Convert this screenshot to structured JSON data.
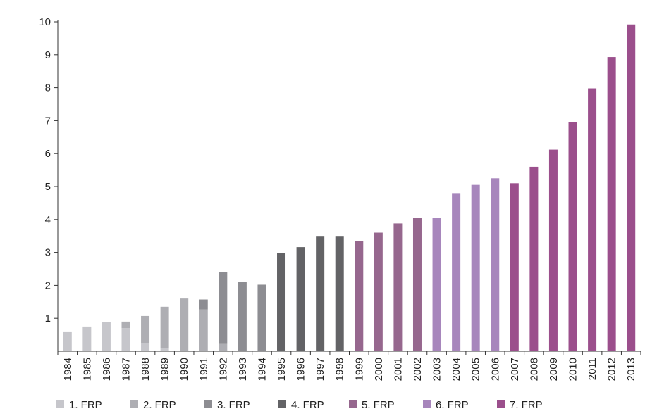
{
  "chart_data": {
    "type": "bar",
    "stacked": true,
    "title": "",
    "xlabel": "",
    "ylabel": "",
    "ylim": [
      0,
      10
    ],
    "yticks": [
      1,
      2,
      3,
      4,
      5,
      6,
      7,
      8,
      9,
      10
    ],
    "grid": false,
    "legend_position": "bottom",
    "categories": [
      "1984",
      "1985",
      "1986",
      "1987",
      "1988",
      "1989",
      "1990",
      "1991",
      "1992",
      "1993",
      "1994",
      "1995",
      "1996",
      "1997",
      "1998",
      "1999",
      "2000",
      "2001",
      "2002",
      "2003",
      "2004",
      "2005",
      "2006",
      "2007",
      "2008",
      "2009",
      "2010",
      "2011",
      "2012",
      "2013"
    ],
    "series": [
      {
        "name": "1. FRP",
        "color": "#c6c6cb",
        "values": [
          0.6,
          0.75,
          0.88,
          0.7,
          0.25,
          0.1,
          0,
          0,
          0,
          0,
          0,
          0,
          0,
          0,
          0,
          0,
          0,
          0,
          0,
          0,
          0,
          0,
          0,
          0,
          0,
          0,
          0,
          0,
          0,
          0
        ]
      },
      {
        "name": "2. FRP",
        "color": "#aeaeb3",
        "values": [
          0,
          0,
          0,
          0.2,
          0.82,
          1.25,
          1.6,
          1.27,
          0.22,
          0,
          0,
          0,
          0,
          0,
          0,
          0,
          0,
          0,
          0,
          0,
          0,
          0,
          0,
          0,
          0,
          0,
          0,
          0,
          0,
          0
        ]
      },
      {
        "name": "3. FRP",
        "color": "#8d8d92",
        "values": [
          0,
          0,
          0,
          0,
          0,
          0,
          0,
          0.3,
          2.18,
          2.1,
          2.02,
          0,
          0,
          0,
          0,
          0,
          0,
          0,
          0,
          0,
          0,
          0,
          0,
          0,
          0,
          0,
          0,
          0,
          0,
          0
        ]
      },
      {
        "name": "4. FRP",
        "color": "#636366",
        "values": [
          0,
          0,
          0,
          0,
          0,
          0,
          0,
          0,
          0,
          0,
          0,
          2.98,
          3.16,
          3.5,
          3.5,
          0,
          0,
          0,
          0,
          0,
          0,
          0,
          0,
          0,
          0,
          0,
          0,
          0,
          0,
          0
        ]
      },
      {
        "name": "5. FRP",
        "color": "#96678e",
        "values": [
          0,
          0,
          0,
          0,
          0,
          0,
          0,
          0,
          0,
          0,
          0,
          0,
          0,
          0,
          0,
          3.35,
          3.6,
          3.88,
          4.05,
          0,
          0,
          0,
          0,
          0,
          0,
          0,
          0,
          0,
          0,
          0
        ]
      },
      {
        "name": "6. FRP",
        "color": "#a786bc",
        "values": [
          0,
          0,
          0,
          0,
          0,
          0,
          0,
          0,
          0,
          0,
          0,
          0,
          0,
          0,
          0,
          0,
          0,
          0,
          0,
          4.05,
          4.8,
          5.05,
          5.25,
          0,
          0,
          0,
          0,
          0,
          0,
          0
        ]
      },
      {
        "name": "7. FRP",
        "color": "#9b4f8c",
        "values": [
          0,
          0,
          0,
          0,
          0,
          0,
          0,
          0,
          0,
          0,
          0,
          0,
          0,
          0,
          0,
          0,
          0,
          0,
          0,
          0,
          0,
          0,
          0,
          5.1,
          5.6,
          6.12,
          6.95,
          7.98,
          8.93,
          9.92
        ]
      }
    ]
  }
}
